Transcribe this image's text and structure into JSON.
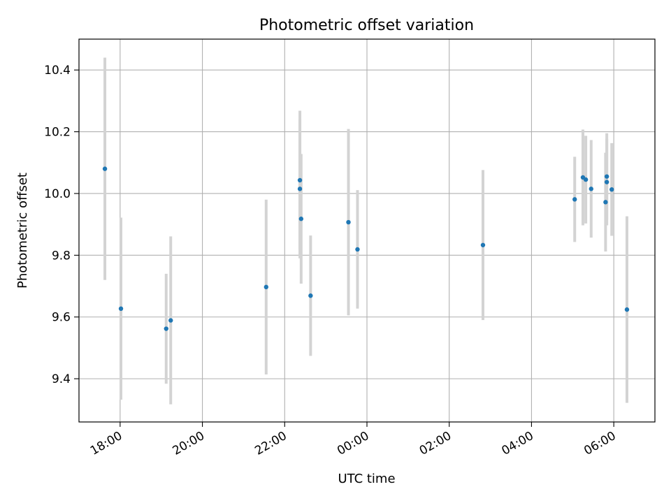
{
  "chart_data": {
    "type": "scatter",
    "title": "Photometric offset variation",
    "xlabel": "UTC time",
    "ylabel": "Photometric offset",
    "x_unit": "hours since 00:00 UTC (negative = previous day)",
    "xlim": [
      -7.0,
      7.0
    ],
    "ylim": [
      9.26,
      10.5
    ],
    "grid": true,
    "x_ticks": [
      {
        "value": -6,
        "label": "18:00"
      },
      {
        "value": -4,
        "label": "20:00"
      },
      {
        "value": -2,
        "label": "22:00"
      },
      {
        "value": 0,
        "label": "00:00"
      },
      {
        "value": 2,
        "label": "02:00"
      },
      {
        "value": 4,
        "label": "04:00"
      },
      {
        "value": 6,
        "label": "06:00"
      }
    ],
    "y_ticks": [
      {
        "value": 9.4,
        "label": "9.4"
      },
      {
        "value": 9.6,
        "label": "9.6"
      },
      {
        "value": 9.8,
        "label": "9.8"
      },
      {
        "value": 10.0,
        "label": "10.0"
      },
      {
        "value": 10.2,
        "label": "10.2"
      },
      {
        "value": 10.4,
        "label": "10.4"
      }
    ],
    "point_color": "#1f77b4",
    "errorbar_color": "#d3d3d3",
    "points": [
      {
        "x": -6.37,
        "y": 10.08,
        "err": 0.36
      },
      {
        "x": -5.98,
        "y": 9.627,
        "err": 0.295
      },
      {
        "x": -4.88,
        "y": 9.562,
        "err": 0.178
      },
      {
        "x": -4.77,
        "y": 9.589,
        "err": 0.272
      },
      {
        "x": -2.45,
        "y": 9.697,
        "err": 0.283
      },
      {
        "x": -1.63,
        "y": 10.043,
        "err": 0.225
      },
      {
        "x": -1.63,
        "y": 10.015,
        "err": 0.225
      },
      {
        "x": -1.6,
        "y": 9.918,
        "err": 0.21
      },
      {
        "x": -1.37,
        "y": 9.669,
        "err": 0.195
      },
      {
        "x": -0.45,
        "y": 9.907,
        "err": 0.302
      },
      {
        "x": -0.23,
        "y": 9.819,
        "err": 0.192
      },
      {
        "x": 2.82,
        "y": 9.833,
        "err": 0.243
      },
      {
        "x": 5.05,
        "y": 9.981,
        "err": 0.138
      },
      {
        "x": 5.25,
        "y": 10.052,
        "err": 0.155
      },
      {
        "x": 5.32,
        "y": 10.045,
        "err": 0.142
      },
      {
        "x": 5.45,
        "y": 10.015,
        "err": 0.158
      },
      {
        "x": 5.8,
        "y": 9.972,
        "err": 0.16
      },
      {
        "x": 5.83,
        "y": 10.055,
        "err": 0.14
      },
      {
        "x": 5.83,
        "y": 10.037,
        "err": 0.14
      },
      {
        "x": 5.95,
        "y": 10.013,
        "err": 0.15
      },
      {
        "x": 6.32,
        "y": 9.624,
        "err": 0.302
      }
    ]
  }
}
